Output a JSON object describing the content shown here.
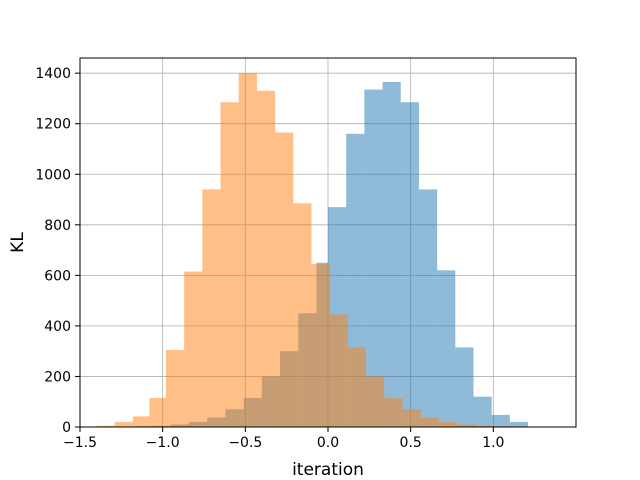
{
  "chart_data": {
    "type": "histogram",
    "title": "",
    "xlabel": "iteration",
    "ylabel": "KL",
    "xlim": [
      -1.5,
      1.5
    ],
    "ylim": [
      0,
      1460
    ],
    "x_ticks": [
      -1.5,
      -1.0,
      -0.5,
      0.0,
      0.5,
      1.0
    ],
    "x_tick_labels": [
      "−1.5",
      "−1.0",
      "−0.5",
      "0.0",
      "0.5",
      "1.0"
    ],
    "y_ticks": [
      0,
      200,
      400,
      600,
      800,
      1000,
      1200,
      1400
    ],
    "y_tick_labels": [
      "0",
      "200",
      "400",
      "600",
      "800",
      "1000",
      "1200",
      "1400"
    ],
    "grid": true,
    "legend": "none",
    "series": [
      {
        "color": "#1f77b4",
        "alpha": 0.5,
        "bins": [
          {
            "x0": -1.39,
            "x1": -1.28,
            "count": 1
          },
          {
            "x0": -1.28,
            "x1": -1.17,
            "count": 2
          },
          {
            "x0": -1.17,
            "x1": -1.06,
            "count": 3
          },
          {
            "x0": -1.06,
            "x1": -0.95,
            "count": 5
          },
          {
            "x0": -0.95,
            "x1": -0.84,
            "count": 10
          },
          {
            "x0": -0.84,
            "x1": -0.73,
            "count": 20
          },
          {
            "x0": -0.73,
            "x1": -0.62,
            "count": 38
          },
          {
            "x0": -0.62,
            "x1": -0.51,
            "count": 70
          },
          {
            "x0": -0.51,
            "x1": -0.4,
            "count": 115
          },
          {
            "x0": -0.4,
            "x1": -0.29,
            "count": 200
          },
          {
            "x0": -0.29,
            "x1": -0.18,
            "count": 300
          },
          {
            "x0": -0.18,
            "x1": -0.07,
            "count": 450
          },
          {
            "x0": -0.07,
            "x1": 0.0,
            "count": 650
          },
          {
            "x0": 0.0,
            "x1": 0.11,
            "count": 870
          },
          {
            "x0": 0.11,
            "x1": 0.22,
            "count": 1160
          },
          {
            "x0": 0.22,
            "x1": 0.33,
            "count": 1335
          },
          {
            "x0": 0.33,
            "x1": 0.44,
            "count": 1365
          },
          {
            "x0": 0.44,
            "x1": 0.55,
            "count": 1285
          },
          {
            "x0": 0.55,
            "x1": 0.66,
            "count": 940
          },
          {
            "x0": 0.66,
            "x1": 0.77,
            "count": 620
          },
          {
            "x0": 0.77,
            "x1": 0.88,
            "count": 315
          },
          {
            "x0": 0.88,
            "x1": 0.99,
            "count": 120
          },
          {
            "x0": 0.99,
            "x1": 1.1,
            "count": 48
          },
          {
            "x0": 1.1,
            "x1": 1.21,
            "count": 20
          }
        ]
      },
      {
        "color": "#ff7f0e",
        "alpha": 0.5,
        "bins": [
          {
            "x0": -1.4,
            "x1": -1.29,
            "count": 5
          },
          {
            "x0": -1.29,
            "x1": -1.18,
            "count": 20
          },
          {
            "x0": -1.18,
            "x1": -1.08,
            "count": 42
          },
          {
            "x0": -1.08,
            "x1": -0.98,
            "count": 115
          },
          {
            "x0": -0.98,
            "x1": -0.87,
            "count": 305
          },
          {
            "x0": -0.87,
            "x1": -0.76,
            "count": 615
          },
          {
            "x0": -0.76,
            "x1": -0.65,
            "count": 940
          },
          {
            "x0": -0.65,
            "x1": -0.54,
            "count": 1285
          },
          {
            "x0": -0.54,
            "x1": -0.43,
            "count": 1400
          },
          {
            "x0": -0.43,
            "x1": -0.32,
            "count": 1330
          },
          {
            "x0": -0.32,
            "x1": -0.21,
            "count": 1165
          },
          {
            "x0": -0.21,
            "x1": -0.1,
            "count": 885
          },
          {
            "x0": -0.1,
            "x1": 0.01,
            "count": 645
          },
          {
            "x0": 0.01,
            "x1": 0.12,
            "count": 445
          },
          {
            "x0": 0.12,
            "x1": 0.23,
            "count": 315
          },
          {
            "x0": 0.23,
            "x1": 0.34,
            "count": 200
          },
          {
            "x0": 0.34,
            "x1": 0.45,
            "count": 115
          },
          {
            "x0": 0.45,
            "x1": 0.56,
            "count": 70
          },
          {
            "x0": 0.56,
            "x1": 0.67,
            "count": 38
          },
          {
            "x0": 0.67,
            "x1": 0.78,
            "count": 20
          },
          {
            "x0": 0.78,
            "x1": 0.89,
            "count": 10
          },
          {
            "x0": 0.89,
            "x1": 1.0,
            "count": 5
          },
          {
            "x0": 1.0,
            "x1": 1.11,
            "count": 3
          },
          {
            "x0": 1.11,
            "x1": 1.22,
            "count": 2
          },
          {
            "x0": 1.22,
            "x1": 1.33,
            "count": 1
          }
        ]
      }
    ]
  }
}
